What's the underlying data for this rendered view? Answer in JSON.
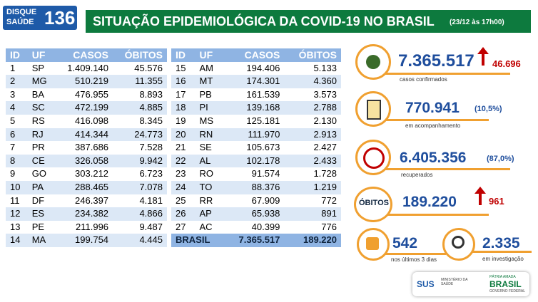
{
  "header": {
    "logo_top": "DISQUE",
    "logo_bottom": "SAÚDE",
    "logo_number": "136",
    "title": "SITUAÇÃO EPIDEMIOLÓGICA DA COVID-19 NO BRASIL",
    "date": "(23/12 às 17h00)"
  },
  "left_table": {
    "header": [
      "ID",
      "UF",
      "CASOS",
      "ÓBITOS"
    ],
    "rows": [
      [
        "1",
        "SP",
        "1.409.140",
        "45.576"
      ],
      [
        "2",
        "MG",
        "510.219",
        "11.355"
      ],
      [
        "3",
        "BA",
        "476.955",
        "8.893"
      ],
      [
        "4",
        "SC",
        "472.199",
        "4.885"
      ],
      [
        "5",
        "RS",
        "416.098",
        "8.345"
      ],
      [
        "6",
        "RJ",
        "414.344",
        "24.773"
      ],
      [
        "7",
        "PR",
        "387.686",
        "7.528"
      ],
      [
        "8",
        "CE",
        "326.058",
        "9.942"
      ],
      [
        "9",
        "GO",
        "303.212",
        "6.723"
      ],
      [
        "10",
        "PA",
        "288.465",
        "7.078"
      ],
      [
        "11",
        "DF",
        "246.397",
        "4.181"
      ],
      [
        "12",
        "ES",
        "234.382",
        "4.866"
      ],
      [
        "13",
        "PE",
        "211.996",
        "9.487"
      ],
      [
        "14",
        "MA",
        "199.754",
        "4.445"
      ]
    ]
  },
  "right_table": {
    "header": [
      "ID",
      "UF",
      "CASOS",
      "ÓBITOS"
    ],
    "rows": [
      [
        "15",
        "AM",
        "194.406",
        "5.133"
      ],
      [
        "16",
        "MT",
        "174.301",
        "4.360"
      ],
      [
        "17",
        "PB",
        "161.539",
        "3.573"
      ],
      [
        "18",
        "PI",
        "139.168",
        "2.788"
      ],
      [
        "19",
        "MS",
        "125.181",
        "2.130"
      ],
      [
        "20",
        "RN",
        "111.970",
        "2.913"
      ],
      [
        "21",
        "SE",
        "105.673",
        "2.427"
      ],
      [
        "22",
        "AL",
        "102.178",
        "2.433"
      ],
      [
        "23",
        "RO",
        "91.574",
        "1.728"
      ],
      [
        "24",
        "TO",
        "88.376",
        "1.219"
      ],
      [
        "25",
        "RR",
        "67.909",
        "772"
      ],
      [
        "26",
        "AP",
        "65.938",
        "891"
      ],
      [
        "27",
        "AC",
        "40.399",
        "776"
      ]
    ],
    "total": [
      "BRASIL",
      "7.365.517",
      "189.220"
    ]
  },
  "stats": {
    "confirmed": {
      "value": "7.365.517",
      "new": "46.696",
      "caption": "casos confirmados"
    },
    "monitoring": {
      "value": "770.941",
      "percent": "(10,5%)",
      "caption": "em acompanhamento"
    },
    "recovered": {
      "value": "6.405.356",
      "percent": "(87,0%)",
      "caption": "recuperados"
    },
    "deaths": {
      "label": "ÓBITOS",
      "value": "189.220",
      "new": "961"
    },
    "recent_deaths": {
      "value": "542",
      "caption": "nos últimos 3 dias"
    },
    "investigation": {
      "value": "2.335",
      "caption": "em investigação"
    }
  },
  "footer": {
    "sus": "SUS",
    "ministry": "MINISTÉRIO DA SAÚDE",
    "slogan": "PÁTRIA AMADA",
    "country": "BRASIL",
    "government": "GOVERNO FEDERAL"
  }
}
